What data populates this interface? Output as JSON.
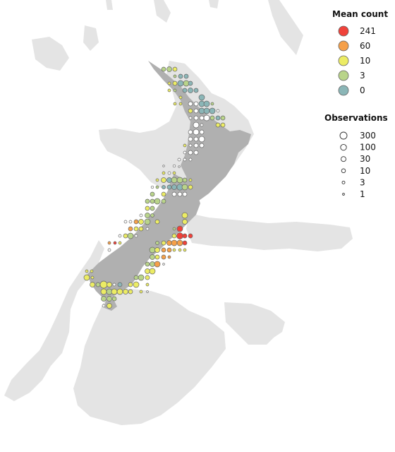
{
  "colors": {
    "background": "#ffffff",
    "seafloor": "#e4e4e4",
    "land": "#b0b0b0",
    "point_stroke": "#666666"
  },
  "legend": {
    "mean_count": {
      "title": "Mean count",
      "items": [
        {
          "label": "241",
          "color": "#f0423a"
        },
        {
          "label": "60",
          "color": "#f5a04a"
        },
        {
          "label": "10",
          "color": "#ecec64"
        },
        {
          "label": "3",
          "color": "#b9d48a"
        },
        {
          "label": "0",
          "color": "#8bb6b7"
        }
      ]
    },
    "observations": {
      "title": "Observations",
      "items": [
        {
          "label": "300",
          "value": 300
        },
        {
          "label": "100",
          "value": 100
        },
        {
          "label": "30",
          "value": 30
        },
        {
          "label": "10",
          "value": 10
        },
        {
          "label": "3",
          "value": 3
        },
        {
          "label": "1",
          "value": 1
        }
      ]
    }
  }
}
